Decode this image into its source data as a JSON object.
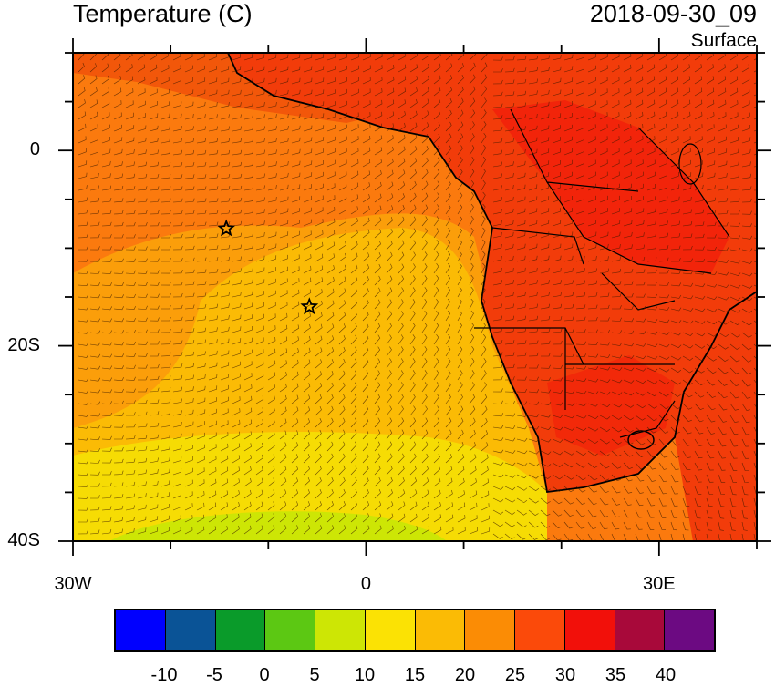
{
  "header": {
    "title": "Temperature (C)",
    "datetime": "2018-09-30_09",
    "level": "Surface"
  },
  "axes": {
    "y_ticks": [
      {
        "label": "0",
        "lat": 0
      },
      {
        "label": "20S",
        "lat": -20
      },
      {
        "label": "40S",
        "lat": -40
      }
    ],
    "x_ticks": [
      {
        "label": "30W",
        "lon": -30
      },
      {
        "label": "0",
        "lon": 0
      },
      {
        "label": "30E",
        "lon": 30
      }
    ],
    "lon_range": [
      -30,
      40
    ],
    "lat_range": [
      -40,
      10
    ]
  },
  "markers": [
    {
      "name": "star-marker-1",
      "lon": -14.3,
      "lat": -8.0
    },
    {
      "name": "star-marker-2",
      "lon": -5.8,
      "lat": -16.0
    }
  ],
  "colorbar": {
    "labels": [
      "-10",
      "-5",
      "0",
      "5",
      "10",
      "15",
      "20",
      "25",
      "30",
      "35",
      "40"
    ],
    "colors": [
      "#0000ff",
      "#0a5396",
      "#0a9b2a",
      "#5cc813",
      "#cde605",
      "#fbe204",
      "#fbbb05",
      "#fb8c05",
      "#fb4a0a",
      "#f2100a",
      "#a8093a",
      "#6c0a82"
    ]
  },
  "palette": {
    "land_hot": "#f23c0a",
    "ocean_warm": "#fb7a0e",
    "ocean_mid": "#fb9e0a",
    "ocean_cool": "#fbc406",
    "ocean_cold": "#f4e204",
    "ocean_coldest": "#cde605"
  }
}
